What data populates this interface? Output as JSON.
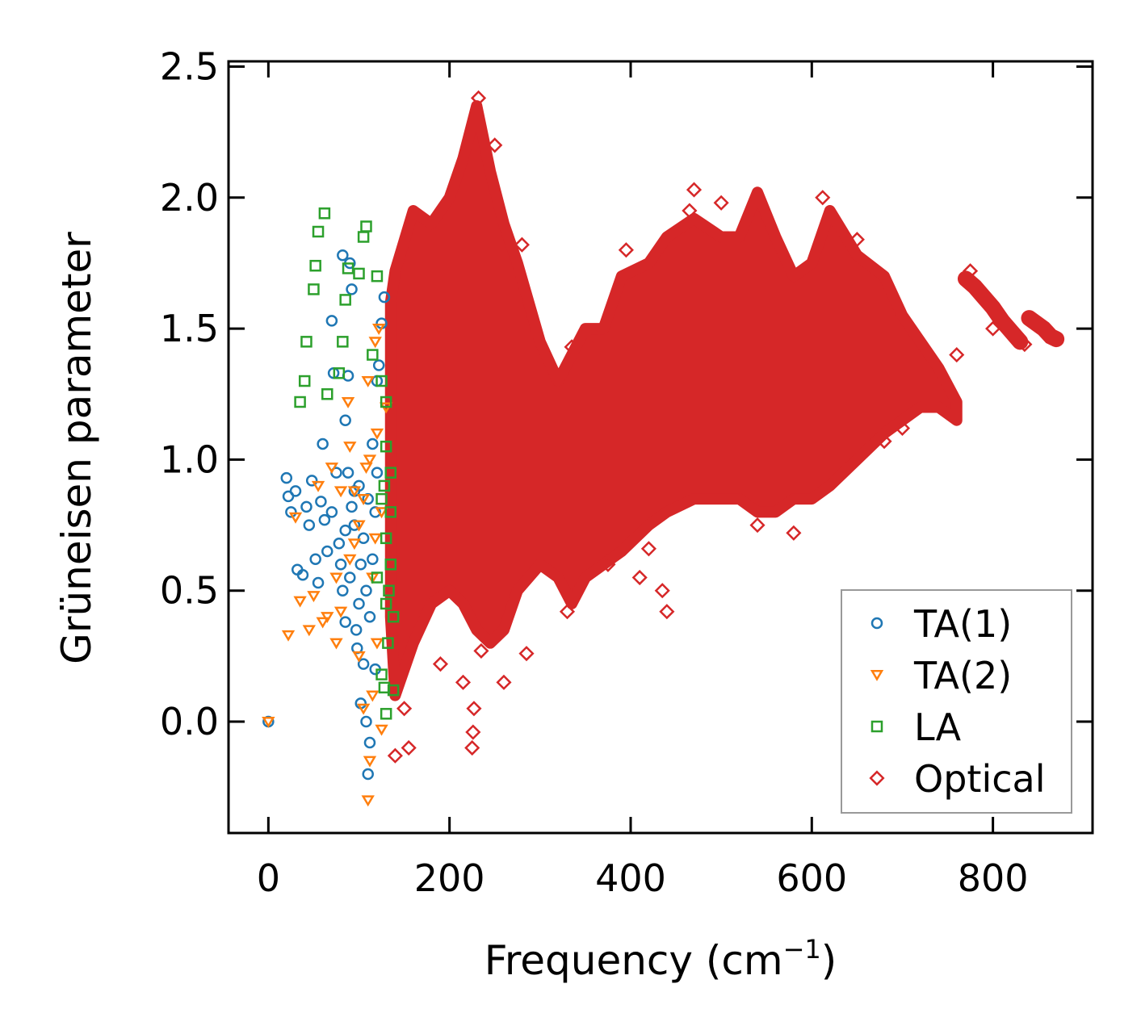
{
  "chart_data": {
    "type": "scatter",
    "title": "",
    "xlabel": "Frequency (cm",
    "xlabel_sup": "−1",
    "xlabel_close": ")",
    "ylabel": "Grüneisen parameter",
    "xlim": [
      -44,
      910
    ],
    "ylim": [
      -0.425,
      2.52
    ],
    "xticks": [
      0,
      200,
      400,
      600,
      800
    ],
    "xtick_labels": [
      "0",
      "200",
      "400",
      "600",
      "800"
    ],
    "yticks": [
      0.0,
      0.5,
      1.0,
      1.5,
      2.0,
      2.5
    ],
    "ytick_labels": [
      "0.0",
      "0.5",
      "1.0",
      "1.5",
      "2.0",
      "2.5"
    ],
    "grid": false,
    "legend_position": "lower-right",
    "series": [
      {
        "name": "TA(1)",
        "marker": "circle",
        "color": "#1f77b4",
        "points": [
          [
            0,
            0
          ],
          [
            20,
            0.93
          ],
          [
            22,
            0.86
          ],
          [
            25,
            0.8
          ],
          [
            30,
            0.88
          ],
          [
            32,
            0.58
          ],
          [
            38,
            0.56
          ],
          [
            42,
            0.82
          ],
          [
            45,
            0.75
          ],
          [
            48,
            0.92
          ],
          [
            52,
            0.62
          ],
          [
            55,
            0.53
          ],
          [
            58,
            0.84
          ],
          [
            60,
            1.06
          ],
          [
            62,
            0.77
          ],
          [
            65,
            0.65
          ],
          [
            70,
            1.53
          ],
          [
            70,
            0.8
          ],
          [
            72,
            1.33
          ],
          [
            75,
            0.95
          ],
          [
            80,
            0.6
          ],
          [
            82,
            1.78
          ],
          [
            85,
            1.15
          ],
          [
            85,
            0.38
          ],
          [
            85,
            0.73
          ],
          [
            88,
            1.32
          ],
          [
            90,
            1.75
          ],
          [
            90,
            0.55
          ],
          [
            92,
            1.65
          ],
          [
            95,
            0.88
          ],
          [
            95,
            0.75
          ],
          [
            98,
            0.28
          ],
          [
            100,
            0.45
          ],
          [
            100,
            0.9
          ],
          [
            102,
            0.07
          ],
          [
            105,
            0.22
          ],
          [
            105,
            0.7
          ],
          [
            108,
            0.0
          ],
          [
            110,
            -0.2
          ],
          [
            112,
            -0.08
          ],
          [
            112,
            0.4
          ],
          [
            115,
            1.06
          ],
          [
            115,
            0.62
          ],
          [
            118,
            0.8
          ],
          [
            118,
            0.2
          ],
          [
            120,
            1.3
          ],
          [
            122,
            1.36
          ],
          [
            125,
            1.52
          ],
          [
            128,
            1.62
          ],
          [
            78,
            0.68
          ],
          [
            88,
            0.95
          ],
          [
            92,
            0.82
          ],
          [
            102,
            0.6
          ],
          [
            108,
            0.5
          ],
          [
            97,
            0.35
          ],
          [
            110,
            0.85
          ],
          [
            120,
            0.95
          ],
          [
            82,
            0.5
          ]
        ]
      },
      {
        "name": "TA(2)",
        "marker": "triangle-down",
        "color": "#ff7f0e",
        "points": [
          [
            0,
            0
          ],
          [
            22,
            0.33
          ],
          [
            30,
            0.78
          ],
          [
            35,
            0.46
          ],
          [
            45,
            0.35
          ],
          [
            50,
            0.48
          ],
          [
            55,
            0.9
          ],
          [
            60,
            0.38
          ],
          [
            65,
            0.4
          ],
          [
            70,
            0.97
          ],
          [
            75,
            0.55
          ],
          [
            75,
            0.3
          ],
          [
            80,
            0.42
          ],
          [
            80,
            0.88
          ],
          [
            88,
            1.22
          ],
          [
            90,
            0.62
          ],
          [
            90,
            1.05
          ],
          [
            95,
            0.88
          ],
          [
            100,
            0.25
          ],
          [
            100,
            0.75
          ],
          [
            105,
            0.05
          ],
          [
            108,
            0.97
          ],
          [
            110,
            -0.3
          ],
          [
            110,
            1.3
          ],
          [
            112,
            -0.15
          ],
          [
            115,
            0.1
          ],
          [
            115,
            0.55
          ],
          [
            118,
            1.45
          ],
          [
            120,
            1.1
          ],
          [
            120,
            0.3
          ],
          [
            122,
            1.5
          ],
          [
            125,
            0.8
          ],
          [
            125,
            -0.03
          ],
          [
            130,
            1.2
          ],
          [
            105,
            0.85
          ],
          [
            112,
            1.0
          ],
          [
            95,
            0.68
          ],
          [
            118,
            0.7
          ]
        ]
      },
      {
        "name": "LA",
        "marker": "square",
        "color": "#2ca02c",
        "points": [
          [
            35,
            1.22
          ],
          [
            40,
            1.3
          ],
          [
            42,
            1.45
          ],
          [
            50,
            1.65
          ],
          [
            52,
            1.74
          ],
          [
            55,
            1.87
          ],
          [
            62,
            1.94
          ],
          [
            65,
            1.25
          ],
          [
            78,
            1.33
          ],
          [
            82,
            1.45
          ],
          [
            85,
            1.61
          ],
          [
            88,
            1.73
          ],
          [
            100,
            1.71
          ],
          [
            105,
            1.85
          ],
          [
            108,
            1.89
          ],
          [
            120,
            1.7
          ],
          [
            115,
            1.4
          ],
          [
            125,
            1.3
          ],
          [
            130,
            1.22
          ],
          [
            130,
            1.05
          ],
          [
            135,
            0.95
          ],
          [
            130,
            0.7
          ],
          [
            135,
            0.6
          ],
          [
            130,
            0.45
          ],
          [
            132,
            0.3
          ],
          [
            125,
            0.18
          ],
          [
            128,
            0.13
          ],
          [
            130,
            0.03
          ],
          [
            138,
            0.12
          ],
          [
            138,
            0.4
          ],
          [
            125,
            0.85
          ],
          [
            135,
            0.8
          ],
          [
            120,
            0.55
          ],
          [
            128,
            0.9
          ],
          [
            133,
            0.5
          ]
        ]
      },
      {
        "name": "Optical",
        "marker": "diamond",
        "color": "#d62728",
        "dense_region": {
          "x": [
            135,
            140,
            160,
            180,
            200,
            215,
            230,
            245,
            260,
            275,
            300,
            320,
            335,
            350,
            370,
            390,
            420,
            440,
            470,
            500,
            520,
            540,
            560,
            580,
            600,
            620,
            650,
            680,
            700,
            720,
            740,
            760
          ],
          "upper": [
            1.6,
            1.72,
            1.95,
            1.9,
            2.0,
            2.15,
            2.35,
            2.1,
            1.9,
            1.75,
            1.45,
            1.3,
            1.4,
            1.5,
            1.5,
            1.7,
            1.75,
            1.85,
            1.92,
            1.85,
            1.85,
            2.02,
            1.85,
            1.7,
            1.75,
            1.95,
            1.78,
            1.7,
            1.55,
            1.45,
            1.35,
            1.22
          ],
          "lower": [
            0.4,
            0.1,
            0.3,
            0.45,
            0.5,
            0.45,
            0.35,
            0.3,
            0.35,
            0.5,
            0.6,
            0.55,
            0.45,
            0.55,
            0.6,
            0.65,
            0.75,
            0.8,
            0.85,
            0.85,
            0.85,
            0.8,
            0.8,
            0.85,
            0.85,
            0.9,
            1.0,
            1.1,
            1.15,
            1.2,
            1.2,
            1.15
          ]
        },
        "bands": [
          {
            "x": [
              770,
              780,
              790,
              800,
              810,
              820,
              830
            ],
            "y": [
              1.69,
              1.66,
              1.62,
              1.58,
              1.53,
              1.49,
              1.45
            ]
          },
          {
            "x": [
              840,
              848,
              856,
              864,
              870
            ],
            "y": [
              1.54,
              1.52,
              1.5,
              1.47,
              1.46
            ]
          }
        ],
        "points": [
          [
            140,
            -0.13
          ],
          [
            155,
            -0.1
          ],
          [
            150,
            0.05
          ],
          [
            190,
            0.22
          ],
          [
            225,
            -0.1
          ],
          [
            226,
            -0.04
          ],
          [
            227,
            0.05
          ],
          [
            215,
            0.15
          ],
          [
            235,
            0.27
          ],
          [
            260,
            0.15
          ],
          [
            285,
            0.26
          ],
          [
            330,
            0.42
          ],
          [
            375,
            0.6
          ],
          [
            395,
            1.8
          ],
          [
            410,
            0.55
          ],
          [
            420,
            0.66
          ],
          [
            440,
            0.42
          ],
          [
            435,
            0.5
          ],
          [
            470,
            2.03
          ],
          [
            465,
            1.95
          ],
          [
            500,
            1.98
          ],
          [
            540,
            0.75
          ],
          [
            580,
            0.72
          ],
          [
            612,
            2.0
          ],
          [
            650,
            1.84
          ],
          [
            680,
            1.07
          ],
          [
            700,
            1.12
          ],
          [
            760,
            1.4
          ],
          [
            835,
            1.44
          ],
          [
            800,
            1.5
          ],
          [
            775,
            1.72
          ],
          [
            360,
            1.47
          ],
          [
            335,
            1.43
          ],
          [
            280,
            1.82
          ],
          [
            232,
            2.38
          ],
          [
            250,
            2.2
          ]
        ]
      }
    ]
  }
}
